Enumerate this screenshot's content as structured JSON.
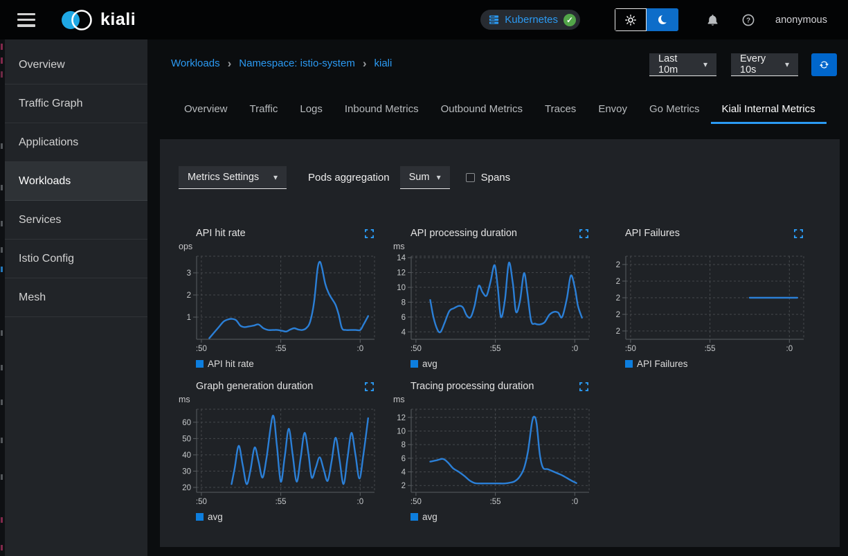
{
  "masthead": {
    "brand": "kiali",
    "cluster": {
      "label": "Kubernetes"
    },
    "user": "anonymous"
  },
  "sidebar": {
    "items": [
      {
        "label": "Overview",
        "active": false
      },
      {
        "label": "Traffic Graph",
        "active": false
      },
      {
        "label": "Applications",
        "active": false
      },
      {
        "label": "Workloads",
        "active": true
      },
      {
        "label": "Services",
        "active": false
      },
      {
        "label": "Istio Config",
        "active": false
      },
      {
        "label": "Mesh",
        "active": false
      }
    ]
  },
  "breadcrumb": {
    "items": [
      "Workloads",
      "Namespace: istio-system",
      "kiali"
    ]
  },
  "toolbar": {
    "duration_label": "Last 10m",
    "refresh_interval_label": "Every 10s"
  },
  "tabs": [
    {
      "label": "Overview",
      "active": false
    },
    {
      "label": "Traffic",
      "active": false
    },
    {
      "label": "Logs",
      "active": false
    },
    {
      "label": "Inbound Metrics",
      "active": false
    },
    {
      "label": "Outbound Metrics",
      "active": false
    },
    {
      "label": "Traces",
      "active": false
    },
    {
      "label": "Envoy",
      "active": false
    },
    {
      "label": "Go Metrics",
      "active": false
    },
    {
      "label": "Kiali Internal Metrics",
      "active": true
    }
  ],
  "metrics_toolbar": {
    "settings_label": "Metrics Settings",
    "aggregation_label": "Pods aggregation",
    "aggregation_value": "Sum",
    "spans_label": "Spans",
    "spans_checked": false
  },
  "colors": {
    "accent": "#2b9af3",
    "link": "#2b9af3",
    "line": "#2b7fd6",
    "legend_swatch": "#0d7ede",
    "primary_button": "#0066cc",
    "success_green": "#52a549",
    "brand_blue": "#1fa7e3"
  },
  "chart_data": [
    {
      "type": "line",
      "title": "API hit rate",
      "unit": "ops",
      "xlim": [
        49.7,
        60.9
      ],
      "ylim": [
        0,
        3.75
      ],
      "xticks": [
        {
          "v": 50,
          "label": ":50"
        },
        {
          "v": 55,
          "label": ":55"
        },
        {
          "v": 60,
          "label": ":0"
        }
      ],
      "yticks": [
        {
          "v": 1,
          "label": "1"
        },
        {
          "v": 2,
          "label": "2"
        },
        {
          "v": 3,
          "label": "3"
        }
      ],
      "series": [
        {
          "name": "API hit rate",
          "points": [
            [
              50.5,
              0.05
            ],
            [
              50.8,
              0.3
            ],
            [
              51.1,
              0.55
            ],
            [
              51.4,
              0.8
            ],
            [
              51.7,
              0.9
            ],
            [
              51.95,
              0.92
            ],
            [
              52.2,
              0.85
            ],
            [
              52.45,
              0.62
            ],
            [
              52.7,
              0.55
            ],
            [
              53.0,
              0.58
            ],
            [
              53.3,
              0.62
            ],
            [
              53.6,
              0.67
            ],
            [
              53.9,
              0.5
            ],
            [
              54.2,
              0.42
            ],
            [
              54.5,
              0.42
            ],
            [
              54.8,
              0.42
            ],
            [
              55.1,
              0.38
            ],
            [
              55.35,
              0.35
            ],
            [
              55.6,
              0.44
            ],
            [
              55.85,
              0.5
            ],
            [
              56.1,
              0.44
            ],
            [
              56.35,
              0.42
            ],
            [
              56.6,
              0.5
            ],
            [
              56.85,
              0.8
            ],
            [
              57.1,
              1.7
            ],
            [
              57.3,
              3.1
            ],
            [
              57.45,
              3.5
            ],
            [
              57.6,
              3.2
            ],
            [
              57.8,
              2.5
            ],
            [
              58.0,
              2.1
            ],
            [
              58.2,
              1.85
            ],
            [
              58.45,
              1.55
            ],
            [
              58.65,
              1.1
            ],
            [
              58.85,
              0.5
            ],
            [
              59.1,
              0.42
            ],
            [
              59.4,
              0.42
            ],
            [
              59.7,
              0.42
            ],
            [
              60.0,
              0.42
            ],
            [
              60.2,
              0.65
            ],
            [
              60.5,
              1.05
            ]
          ]
        }
      ]
    },
    {
      "type": "line",
      "title": "API processing duration",
      "unit": "ms",
      "xlim": [
        49.7,
        60.9
      ],
      "ylim": [
        3,
        14.2
      ],
      "xticks": [
        {
          "v": 50,
          "label": ":50"
        },
        {
          "v": 55,
          "label": ":55"
        },
        {
          "v": 60,
          "label": ":0"
        }
      ],
      "yticks": [
        {
          "v": 4,
          "label": "4"
        },
        {
          "v": 6,
          "label": "6"
        },
        {
          "v": 8,
          "label": "8"
        },
        {
          "v": 10,
          "label": "10"
        },
        {
          "v": 12,
          "label": "12"
        },
        {
          "v": 14,
          "label": "14"
        }
      ],
      "series": [
        {
          "name": "avg",
          "points": [
            [
              50.9,
              8.3
            ],
            [
              51.1,
              6.0
            ],
            [
              51.35,
              4.3
            ],
            [
              51.55,
              4.0
            ],
            [
              51.8,
              5.2
            ],
            [
              52.1,
              6.8
            ],
            [
              52.4,
              7.2
            ],
            [
              52.7,
              7.5
            ],
            [
              52.95,
              7.3
            ],
            [
              53.2,
              6.2
            ],
            [
              53.45,
              6.0
            ],
            [
              53.7,
              7.6
            ],
            [
              53.95,
              10.2
            ],
            [
              54.2,
              9.3
            ],
            [
              54.45,
              8.9
            ],
            [
              54.7,
              10.8
            ],
            [
              54.95,
              13.0
            ],
            [
              55.15,
              10.0
            ],
            [
              55.35,
              6.0
            ],
            [
              55.6,
              8.3
            ],
            [
              55.85,
              13.3
            ],
            [
              56.1,
              10.5
            ],
            [
              56.3,
              6.7
            ],
            [
              56.55,
              8.2
            ],
            [
              56.8,
              11.9
            ],
            [
              57.0,
              9.5
            ],
            [
              57.25,
              5.5
            ],
            [
              57.5,
              5.1
            ],
            [
              57.8,
              5.0
            ],
            [
              58.1,
              5.3
            ],
            [
              58.4,
              6.3
            ],
            [
              58.7,
              6.7
            ],
            [
              58.95,
              6.6
            ],
            [
              59.2,
              6.0
            ],
            [
              59.5,
              8.5
            ],
            [
              59.75,
              11.6
            ],
            [
              60.0,
              10.0
            ],
            [
              60.2,
              7.5
            ],
            [
              60.45,
              5.9
            ]
          ]
        }
      ]
    },
    {
      "type": "line",
      "title": "API Failures",
      "unit": "",
      "xlim": [
        49.7,
        60.9
      ],
      "ylim": [
        1.5,
        2.5
      ],
      "xticks": [
        {
          "v": 50,
          "label": ":50"
        },
        {
          "v": 55,
          "label": ":55"
        },
        {
          "v": 60,
          "label": ":0"
        }
      ],
      "yticks": [
        {
          "v": 2.4,
          "label": "2"
        },
        {
          "v": 2.2,
          "label": "2"
        },
        {
          "v": 2.0,
          "label": "2"
        },
        {
          "v": 1.8,
          "label": "2"
        },
        {
          "v": 1.6,
          "label": "2"
        }
      ],
      "series": [
        {
          "name": "API Failures",
          "points": [
            [
              57.5,
              2
            ],
            [
              60.5,
              2
            ]
          ]
        }
      ]
    },
    {
      "type": "line",
      "title": "Graph generation duration",
      "unit": "ms",
      "xlim": [
        49.7,
        60.9
      ],
      "ylim": [
        17,
        68
      ],
      "xticks": [
        {
          "v": 50,
          "label": ":50"
        },
        {
          "v": 55,
          "label": ":55"
        },
        {
          "v": 60,
          "label": ":0"
        }
      ],
      "yticks": [
        {
          "v": 20,
          "label": "20"
        },
        {
          "v": 30,
          "label": "30"
        },
        {
          "v": 40,
          "label": "40"
        },
        {
          "v": 50,
          "label": "50"
        },
        {
          "v": 60,
          "label": "60"
        }
      ],
      "series": [
        {
          "name": "avg",
          "points": [
            [
              51.9,
              22
            ],
            [
              52.1,
              32
            ],
            [
              52.35,
              45.5
            ],
            [
              52.6,
              34
            ],
            [
              52.85,
              22
            ],
            [
              53.1,
              31
            ],
            [
              53.35,
              44.5
            ],
            [
              53.6,
              36
            ],
            [
              53.85,
              26
            ],
            [
              54.1,
              38
            ],
            [
              54.5,
              64
            ],
            [
              54.75,
              46
            ],
            [
              55.0,
              23.5
            ],
            [
              55.25,
              39
            ],
            [
              55.5,
              56
            ],
            [
              55.75,
              40
            ],
            [
              56.0,
              23.5
            ],
            [
              56.25,
              38
            ],
            [
              56.5,
              53.5
            ],
            [
              56.75,
              40
            ],
            [
              56.95,
              26
            ],
            [
              57.2,
              32
            ],
            [
              57.45,
              38.5
            ],
            [
              57.7,
              31
            ],
            [
              57.95,
              24
            ],
            [
              58.2,
              36
            ],
            [
              58.45,
              50.5
            ],
            [
              58.7,
              37
            ],
            [
              58.95,
              22
            ],
            [
              59.2,
              38
            ],
            [
              59.45,
              53.5
            ],
            [
              59.7,
              40
            ],
            [
              59.95,
              25.5
            ],
            [
              60.2,
              40
            ],
            [
              60.5,
              62.5
            ]
          ]
        }
      ]
    },
    {
      "type": "line",
      "title": "Tracing processing duration",
      "unit": "ms",
      "xlim": [
        49.7,
        60.9
      ],
      "ylim": [
        1,
        13.2
      ],
      "xticks": [
        {
          "v": 50,
          "label": ":50"
        },
        {
          "v": 55,
          "label": ":55"
        },
        {
          "v": 60,
          "label": ":0"
        }
      ],
      "yticks": [
        {
          "v": 2,
          "label": "2"
        },
        {
          "v": 4,
          "label": "4"
        },
        {
          "v": 6,
          "label": "6"
        },
        {
          "v": 8,
          "label": "8"
        },
        {
          "v": 10,
          "label": "10"
        },
        {
          "v": 12,
          "label": "12"
        }
      ],
      "series": [
        {
          "name": "avg",
          "points": [
            [
              50.9,
              5.5
            ],
            [
              51.3,
              5.7
            ],
            [
              51.7,
              5.9
            ],
            [
              52.0,
              5.4
            ],
            [
              52.35,
              4.5
            ],
            [
              52.7,
              4.0
            ],
            [
              53.05,
              3.4
            ],
            [
              53.4,
              2.7
            ],
            [
              53.7,
              2.35
            ],
            [
              54.0,
              2.3
            ],
            [
              54.4,
              2.3
            ],
            [
              54.8,
              2.3
            ],
            [
              55.2,
              2.3
            ],
            [
              55.6,
              2.3
            ],
            [
              55.9,
              2.4
            ],
            [
              56.2,
              2.6
            ],
            [
              56.5,
              3.2
            ],
            [
              56.8,
              4.5
            ],
            [
              57.05,
              7.0
            ],
            [
              57.3,
              11.2
            ],
            [
              57.45,
              12.1
            ],
            [
              57.6,
              11.0
            ],
            [
              57.8,
              6.5
            ],
            [
              58.0,
              4.6
            ],
            [
              58.3,
              4.4
            ],
            [
              58.6,
              4.1
            ],
            [
              58.9,
              3.8
            ],
            [
              59.2,
              3.5
            ],
            [
              59.5,
              3.1
            ],
            [
              59.8,
              2.7
            ],
            [
              60.1,
              2.35
            ]
          ]
        }
      ]
    }
  ]
}
